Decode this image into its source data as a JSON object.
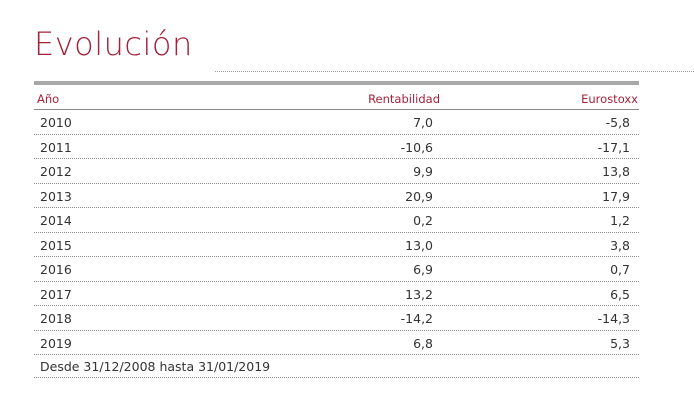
{
  "title": "Evolución",
  "table": {
    "headers": {
      "year": "Año",
      "rentabilidad": "Rentabilidad",
      "eurostoxx": "Eurostoxx"
    },
    "rows": [
      {
        "year": "2010",
        "rentabilidad": "7,0",
        "eurostoxx": "-5,8"
      },
      {
        "year": "2011",
        "rentabilidad": "-10,6",
        "eurostoxx": "-17,1"
      },
      {
        "year": "2012",
        "rentabilidad": "9,9",
        "eurostoxx": "13,8"
      },
      {
        "year": "2013",
        "rentabilidad": "20,9",
        "eurostoxx": "17,9"
      },
      {
        "year": "2014",
        "rentabilidad": "0,2",
        "eurostoxx": "1,2"
      },
      {
        "year": "2015",
        "rentabilidad": "13,0",
        "eurostoxx": "3,8"
      },
      {
        "year": "2016",
        "rentabilidad": "6,9",
        "eurostoxx": "0,7"
      },
      {
        "year": "2017",
        "rentabilidad": "13,2",
        "eurostoxx": "6,5"
      },
      {
        "year": "2018",
        "rentabilidad": "-14,2",
        "eurostoxx": "-14,3"
      },
      {
        "year": "2019",
        "rentabilidad": "6,8",
        "eurostoxx": "5,3"
      }
    ],
    "footnote": "Desde 31/12/2008 hasta 31/01/2019"
  },
  "colors": {
    "accent": "#a3223a",
    "text": "#333333",
    "rule": "#a8a8a8"
  }
}
